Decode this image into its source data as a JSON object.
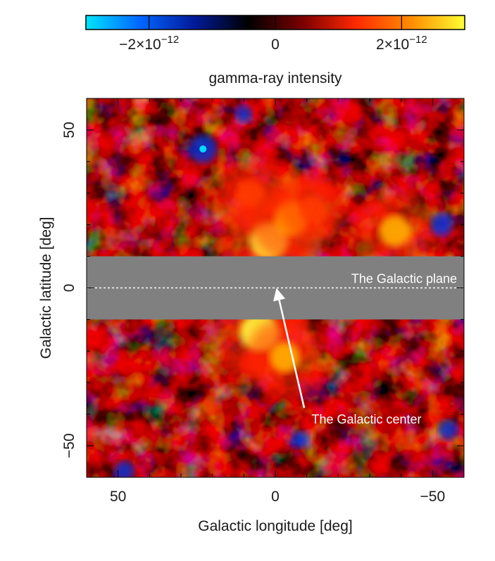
{
  "chart_data": {
    "type": "heatmap",
    "title": "",
    "xlabel": "Galactic longitude [deg]",
    "ylabel": "Galactic latitude [deg]",
    "xlim": [
      60,
      -60
    ],
    "ylim": [
      -60,
      60
    ],
    "x_ticks": [
      {
        "value": 50,
        "label": "50"
      },
      {
        "value": 0,
        "label": "0"
      },
      {
        "value": -50,
        "label": "−50"
      }
    ],
    "y_ticks": [
      {
        "value": 50,
        "label": "50"
      },
      {
        "value": 0,
        "label": "0"
      },
      {
        "value": -50,
        "label": "−50"
      }
    ],
    "colorbar": {
      "label": "gamma-ray intensity",
      "range": [
        -3e-12,
        3e-12
      ],
      "stops": [
        "#00e5ff",
        "#0066ff",
        "#001a99",
        "#000000",
        "#7a0000",
        "#ff2a00",
        "#ff8c00",
        "#ffff33"
      ],
      "ticks": [
        {
          "value": -2e-12,
          "base": "−2×10",
          "exp": "−12"
        },
        {
          "value": 0,
          "base": "0",
          "exp": ""
        },
        {
          "value": 2e-12,
          "base": "2×10",
          "exp": "−12"
        }
      ]
    },
    "masked_band": {
      "lat_min": -10,
      "lat_max": 10,
      "color": "#808080"
    },
    "hotspots": [
      {
        "l": 2,
        "b": 15,
        "intensity": 1.0
      },
      {
        "l": -5,
        "b": 22,
        "intensity": 0.8
      },
      {
        "l": 8,
        "b": 30,
        "intensity": 0.55
      },
      {
        "l": 5,
        "b": -14,
        "intensity": 1.0
      },
      {
        "l": -3,
        "b": -22,
        "intensity": 0.65
      },
      {
        "l": -12,
        "b": 25,
        "intensity": 0.5
      },
      {
        "l": -38,
        "b": 18,
        "intensity": 0.7
      }
    ],
    "cold_spots": [
      {
        "l": 23,
        "b": 44,
        "intensity": -1.0
      },
      {
        "l": -53,
        "b": 20,
        "intensity": -0.7
      },
      {
        "l": -55,
        "b": -45,
        "intensity": -0.6
      },
      {
        "l": 48,
        "b": -58,
        "intensity": -0.6
      },
      {
        "l": 10,
        "b": 55,
        "intensity": -0.45
      },
      {
        "l": -8,
        "b": -48,
        "intensity": -0.45
      }
    ],
    "annotations": {
      "plane_label": "The Galactic plane",
      "center_label": "The Galactic center",
      "center_point": {
        "l": 0,
        "b": 0
      }
    }
  }
}
